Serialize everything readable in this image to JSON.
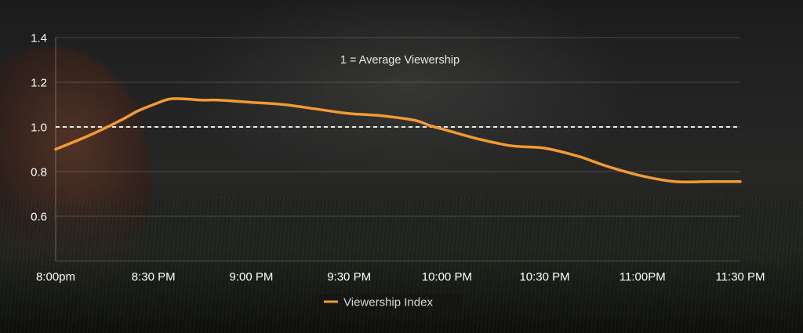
{
  "chart_data": {
    "type": "line",
    "title": "",
    "xlabel": "",
    "ylabel": "",
    "x_tick_labels": [
      "8:00pm",
      "8:30 PM",
      "9:00 PM",
      "9:30 PM",
      "10:00 PM",
      "10:30 PM",
      "11:00PM",
      "11:30 PM"
    ],
    "y_ticks": [
      "0.6",
      "0.8",
      "1.0",
      "1.2",
      "1.4"
    ],
    "ylim": [
      0.4,
      1.4
    ],
    "xlim_minutes_after_8pm": [
      0,
      210
    ],
    "grid": "horizontal",
    "reference_line": {
      "y": 1.0,
      "style": "dashed",
      "color": "#e8e8e8"
    },
    "annotation": "1 = Average Viewership",
    "legend": {
      "position": "bottom-center",
      "entries": [
        "Viewership Index"
      ]
    },
    "series": [
      {
        "name": "Viewership Index",
        "color": "#f59a32",
        "x_minutes_after_8pm": [
          0,
          10,
          20,
          25,
          30,
          35,
          40,
          45,
          50,
          60,
          70,
          80,
          90,
          100,
          110,
          115,
          120,
          130,
          140,
          150,
          160,
          165,
          170,
          180,
          190,
          200,
          210
        ],
        "values": [
          0.9,
          0.96,
          1.03,
          1.07,
          1.1,
          1.125,
          1.125,
          1.12,
          1.12,
          1.11,
          1.1,
          1.08,
          1.06,
          1.05,
          1.03,
          1.005,
          0.985,
          0.945,
          0.915,
          0.905,
          0.87,
          0.845,
          0.82,
          0.78,
          0.755,
          0.755,
          0.755
        ]
      }
    ]
  }
}
